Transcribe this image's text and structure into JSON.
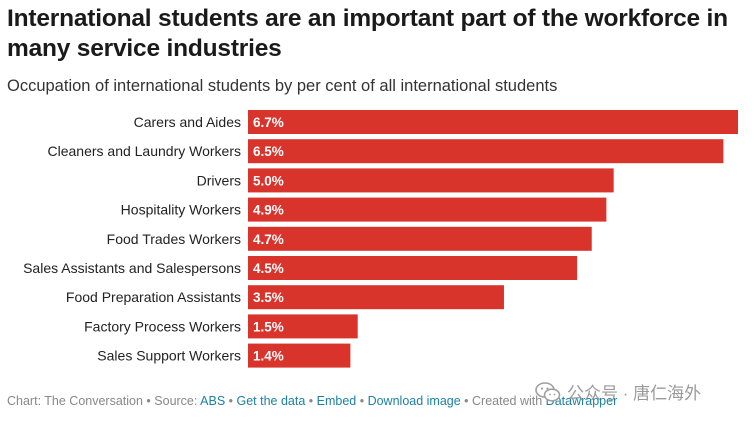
{
  "title": "International students are an important part of the workforce in many service industries",
  "subtitle": "Occupation of international students by per cent of all international students",
  "chart_data": {
    "type": "bar",
    "orientation": "horizontal",
    "title": "International students are an important part of the workforce in many service industries",
    "subtitle": "Occupation of international students by per cent of all international students",
    "categories": [
      "Carers and Aides",
      "Cleaners and Laundry Workers",
      "Drivers",
      "Hospitality Workers",
      "Food Trades Workers",
      "Sales Assistants and Salespersons",
      "Food Preparation Assistants",
      "Factory Process Workers",
      "Sales Support Workers"
    ],
    "values": [
      6.7,
      6.5,
      5.0,
      4.9,
      4.7,
      4.5,
      3.5,
      1.5,
      1.4
    ],
    "value_labels": [
      "6.7%",
      "6.5%",
      "5.0%",
      "4.9%",
      "4.7%",
      "4.5%",
      "3.5%",
      "1.5%",
      "1.4%"
    ],
    "xlim": [
      0,
      6.7
    ],
    "bar_color": "#d8342c",
    "label_color": "#ffffff",
    "grid": false,
    "legend": "none"
  },
  "footer": {
    "credit": "Chart: The Conversation",
    "sep": " • ",
    "source_label": "Source: ",
    "source_link": "ABS",
    "get_data": "Get the data",
    "embed": "Embed",
    "download": "Download image",
    "created_with": "Created with ",
    "datawrapper": "Datawrapper"
  },
  "watermark": {
    "text": "公众号 · 唐仁海外",
    "icon": "wechat-icon"
  }
}
